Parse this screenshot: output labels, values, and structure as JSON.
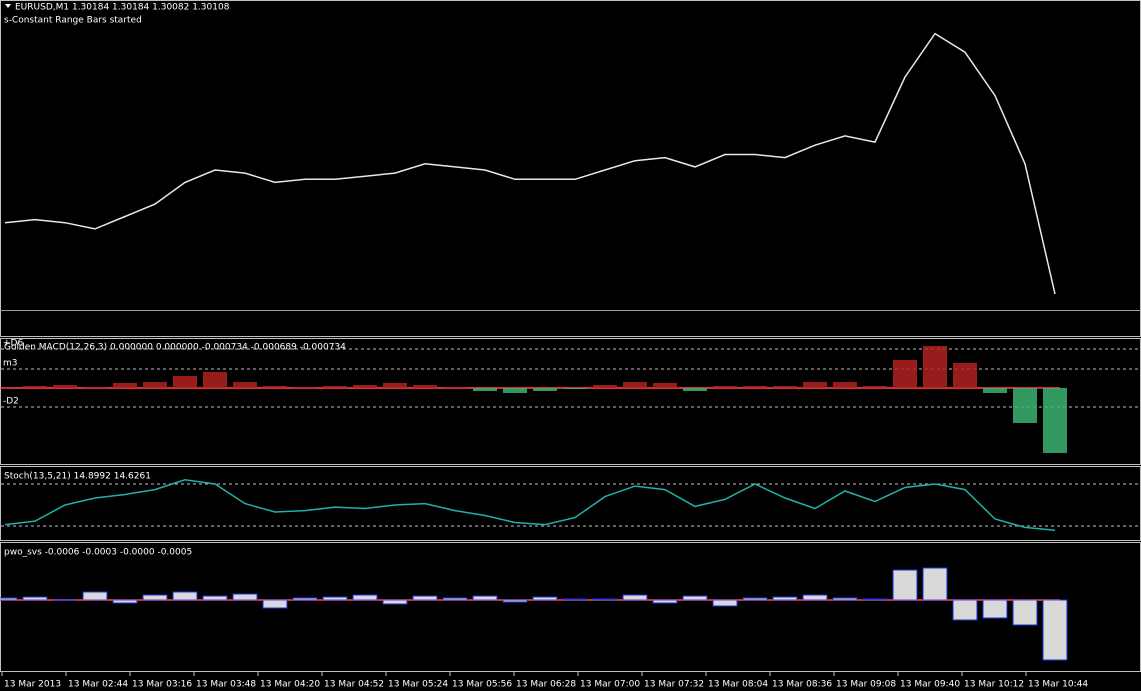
{
  "chart_data": [
    {
      "type": "line",
      "title": "EURUSD,M1  1.30184 1.30184 1.30082 1.30108",
      "subtitle": "s-Constant Range Bars started",
      "color": "#e8e8e8",
      "ylim": [
        0,
        100
      ],
      "values": [
        33,
        34,
        33,
        31,
        35,
        39,
        46,
        50,
        49,
        46,
        47,
        47,
        48,
        49,
        52,
        51,
        50,
        47,
        47,
        47,
        50,
        53,
        54,
        51,
        55,
        55,
        54,
        58,
        61,
        59,
        80,
        94,
        88,
        74,
        52,
        10
      ]
    },
    {
      "type": "bar",
      "title": "Golden MACD(12,26,3) 0.000000 0.000000 -0.000734 -0.000689 -0.000734",
      "color": "#b22222",
      "negative_color": "#3cb371",
      "ylim": [
        -76,
        50
      ],
      "yticks": [
        {
          "value": 39,
          "label": "+D6"
        },
        {
          "value": 19,
          "label": "m3"
        },
        {
          "value": -19,
          "label": "-D2"
        }
      ],
      "values": [
        0,
        2,
        3,
        1,
        5,
        6,
        12,
        16,
        6,
        2,
        1,
        2,
        3,
        5,
        3,
        1,
        -3,
        -5,
        -3,
        -1,
        3,
        6,
        5,
        -3,
        2,
        2,
        2,
        6,
        6,
        2,
        28,
        42,
        25,
        -5,
        -35,
        -65
      ]
    },
    {
      "type": "line",
      "title": "Stoch(13,5,21) 14.8992 14.6261",
      "color": "#20b2aa",
      "ylim": [
        0,
        100
      ],
      "levels": [
        80,
        20
      ],
      "values": [
        22,
        27,
        50,
        60,
        65,
        72,
        86,
        80,
        52,
        40,
        42,
        47,
        45,
        50,
        52,
        42,
        35,
        25,
        22,
        32,
        62,
        77,
        72,
        48,
        58,
        80,
        60,
        45,
        70,
        55,
        75,
        80,
        72,
        30,
        18,
        14
      ]
    },
    {
      "type": "bar",
      "title": "pwo_svs -0.0006 -0.0003 -0.0000 -0.0005",
      "color": "#ffffff",
      "negative_color": "#ffffff",
      "ylim": [
        -71,
        58
      ],
      "values": [
        2,
        3,
        0,
        8,
        -3,
        5,
        8,
        4,
        6,
        -8,
        2,
        3,
        5,
        -4,
        4,
        2,
        4,
        -2,
        3,
        1,
        1,
        5,
        -3,
        4,
        -6,
        2,
        3,
        5,
        2,
        1,
        30,
        32,
        -20,
        -18,
        -25,
        -60
      ]
    }
  ],
  "time_axis": {
    "labels": [
      "13 Mar 2013",
      "13 Mar 02:44",
      "13 Mar 03:16",
      "13 Mar 03:48",
      "13 Mar 04:20",
      "13 Mar 04:52",
      "13 Mar 05:24",
      "13 Mar 05:56",
      "13 Mar 06:28",
      "13 Mar 07:00",
      "13 Mar 07:32",
      "13 Mar 08:04",
      "13 Mar 08:36",
      "13 Mar 09:08",
      "13 Mar 09:40",
      "13 Mar 10:12",
      "13 Mar 10:44"
    ]
  }
}
